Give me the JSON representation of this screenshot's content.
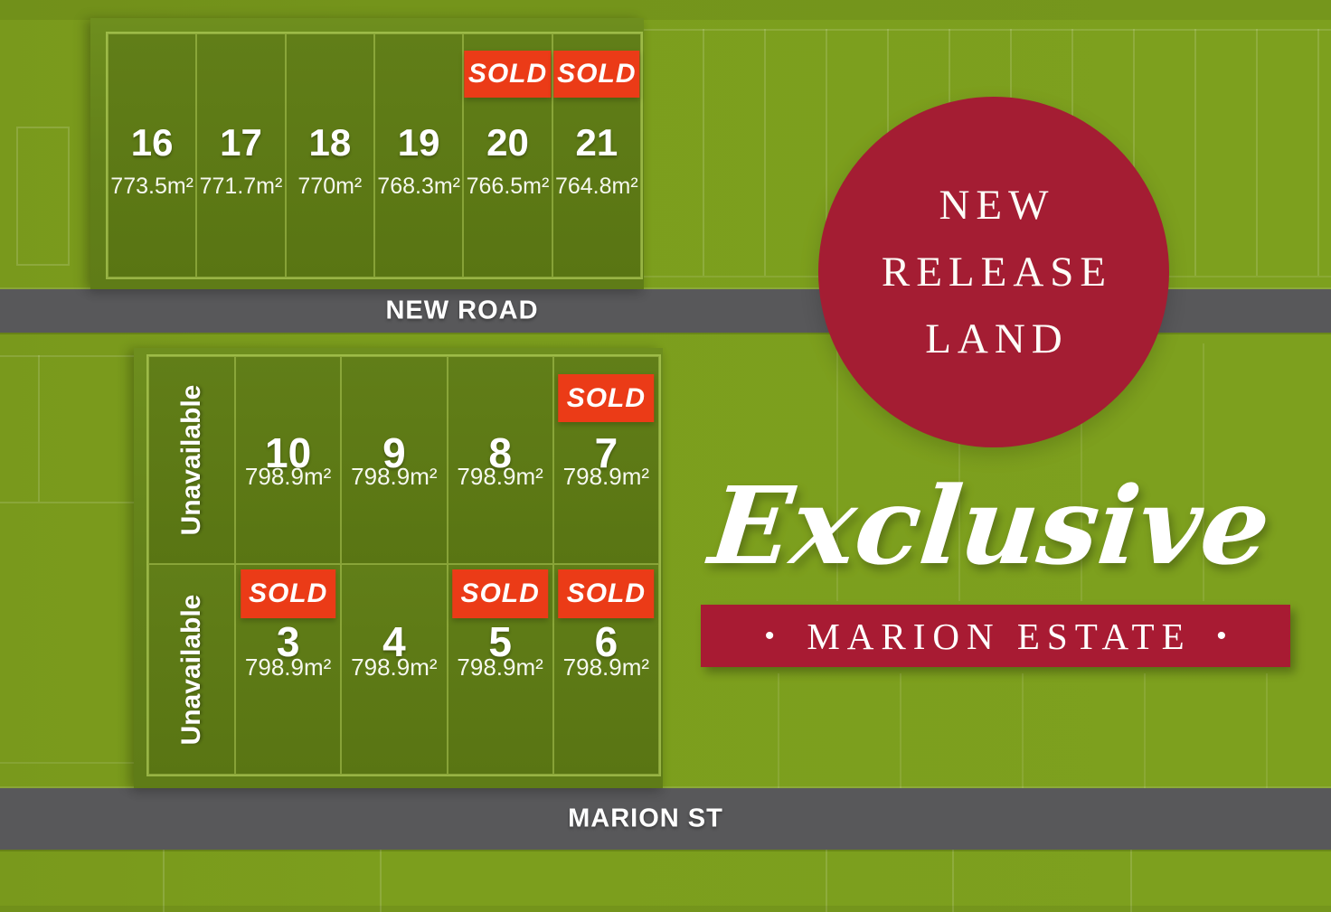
{
  "sold_label": "SOLD",
  "unavailable_label": "Unavailable",
  "roads": {
    "top": "NEW ROAD",
    "bottom": "MARION ST"
  },
  "circle_badge": {
    "line1": "NEW",
    "line2": "RELEASE",
    "line3": "LAND"
  },
  "branding": {
    "script": "Exclusive",
    "banner": "MARION ESTATE",
    "bullet": "•"
  },
  "colors": {
    "accent_red": "#a41d33",
    "banner_red": "#a81b33",
    "sold_red": "#eb3b17",
    "road_gray": "#58585a",
    "background_green": "#7c9e1d",
    "lot_green": "#5d7a16",
    "text_white": "#ffffff"
  },
  "top_lots": [
    {
      "number": "16",
      "area": "773.5m²",
      "sold": false
    },
    {
      "number": "17",
      "area": "771.7m²",
      "sold": false
    },
    {
      "number": "18",
      "area": "770m²",
      "sold": false
    },
    {
      "number": "19",
      "area": "768.3m²",
      "sold": false
    },
    {
      "number": "20",
      "area": "766.5m²",
      "sold": true
    },
    {
      "number": "21",
      "area": "764.8m²",
      "sold": true
    }
  ],
  "middle_lots": [
    {
      "number": "10",
      "area": "798.9m²",
      "sold": false
    },
    {
      "number": "9",
      "area": "798.9m²",
      "sold": false
    },
    {
      "number": "8",
      "area": "798.9m²",
      "sold": false
    },
    {
      "number": "7",
      "area": "798.9m²",
      "sold": true
    }
  ],
  "bottom_lots": [
    {
      "number": "3",
      "area": "798.9m²",
      "sold": true
    },
    {
      "number": "4",
      "area": "798.9m²",
      "sold": false
    },
    {
      "number": "5",
      "area": "798.9m²",
      "sold": true
    },
    {
      "number": "6",
      "area": "798.9m²",
      "sold": true
    }
  ]
}
